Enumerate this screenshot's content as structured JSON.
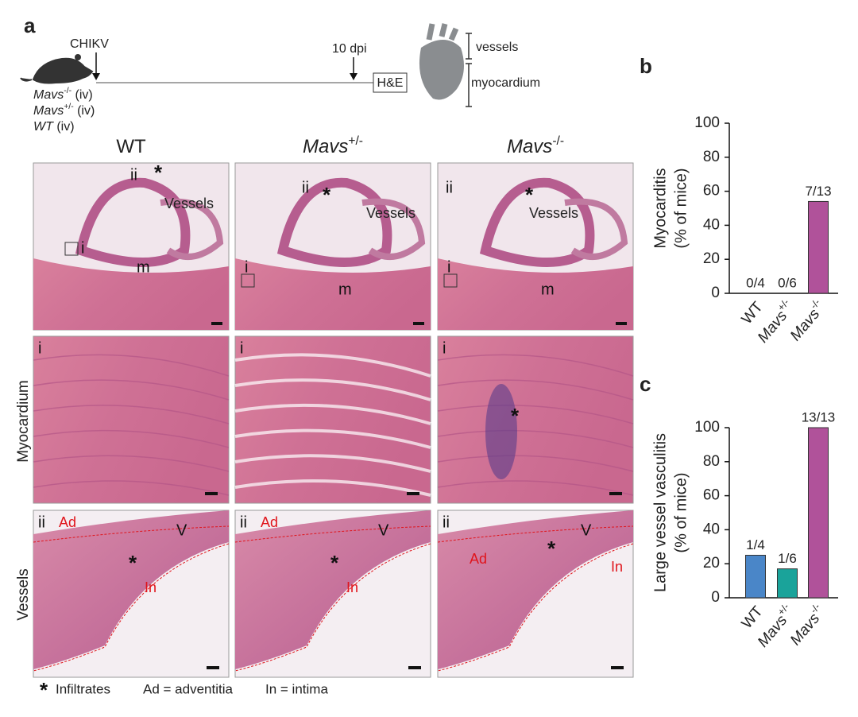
{
  "panel_a": {
    "label": "a",
    "infection": "CHIKV",
    "timepoint": "10 dpi",
    "stain": "H&E",
    "heart_parts": [
      "vessels",
      "myocardium"
    ],
    "groups": [
      "Mavs-/- (iv)",
      "Mavs+/- (iv)",
      "WT (iv)"
    ],
    "columns": [
      "WT",
      "Mavs+/-",
      "Mavs-/-"
    ],
    "rows": [
      "Myocardium",
      "Vessels"
    ],
    "overview_labels": {
      "i": "i",
      "ii": "ii",
      "m": "m",
      "vessels": "Vessels"
    },
    "vessel_labels": {
      "ad": "Ad",
      "v": "V",
      "in": "In"
    },
    "asterisk": "*",
    "legend": [
      "Infiltrates",
      "Ad = adventitia",
      "In = intima"
    ]
  },
  "chart_data": [
    {
      "type": "bar",
      "panel": "b",
      "ylabel": [
        "Myocarditis",
        "(% of mice)"
      ],
      "categories": [
        "WT",
        "Mavs+/-",
        "Mavs-/-"
      ],
      "values": [
        0,
        0,
        54
      ],
      "value_labels": [
        "0/4",
        "0/6",
        "7/13"
      ],
      "colors": [
        "#4a86c8",
        "#1aa39a",
        "#b0529a"
      ],
      "ylim": [
        0,
        100
      ],
      "yticks": [
        0,
        20,
        40,
        60,
        80,
        100
      ]
    },
    {
      "type": "bar",
      "panel": "c",
      "ylabel": [
        "Large vessel vasculitis",
        "(% of mice)"
      ],
      "categories": [
        "WT",
        "Mavs+/-",
        "Mavs-/-"
      ],
      "values": [
        25,
        17,
        100
      ],
      "value_labels": [
        "1/4",
        "1/6",
        "13/13"
      ],
      "colors": [
        "#4a86c8",
        "#1aa39a",
        "#b0529a"
      ],
      "ylim": [
        0,
        100
      ],
      "yticks": [
        0,
        20,
        40,
        60,
        80,
        100
      ]
    }
  ]
}
